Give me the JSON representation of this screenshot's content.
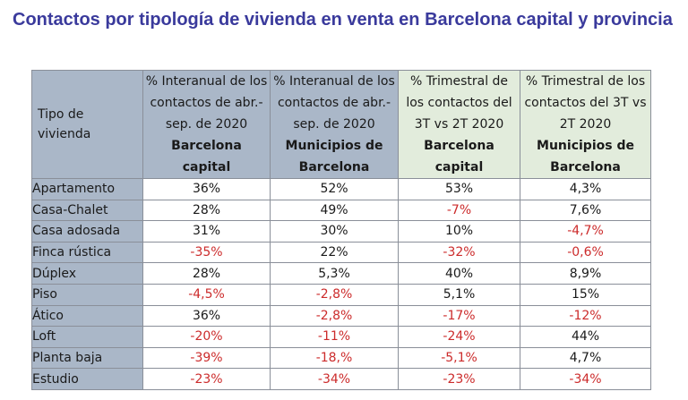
{
  "title": "Contactos por tipología de vivienda en venta en Barcelona capital y provincia",
  "table": {
    "header": {
      "first": "Tipo de vivienda",
      "c1_plain": "% Interanual de los contactos de abr.-sep. de 2020",
      "c1_bold": "Barcelona capital",
      "c2_plain": "% Interanual de los contactos de abr.-sep. de 2020",
      "c2_bold": "Municipios de Barcelona",
      "c3_plain": "% Trimestral de los contactos del 3T vs 2T 2020",
      "c3_bold": "Barcelona capital",
      "c4_plain": "% Trimestral de los contactos del 3T vs 2T 2020",
      "c4_bold": "Municipios de Barcelona"
    },
    "rows": [
      {
        "label": "Apartamento",
        "v": [
          "36%",
          "52%",
          "53%",
          "4,3%"
        ]
      },
      {
        "label": "Casa-Chalet",
        "v": [
          "28%",
          "49%",
          "-7%",
          "7,6%"
        ]
      },
      {
        "label": "Casa adosada",
        "v": [
          "31%",
          "30%",
          "10%",
          "-4,7%"
        ]
      },
      {
        "label": "Finca rústica",
        "v": [
          "-35%",
          "22%",
          "-32%",
          "-0,6%"
        ]
      },
      {
        "label": "Dúplex",
        "v": [
          "28%",
          "5,3%",
          "40%",
          "8,9%"
        ]
      },
      {
        "label": "Piso",
        "v": [
          "-4,5%",
          "-2,8%",
          "5,1%",
          "15%"
        ]
      },
      {
        "label": "Ático",
        "v": [
          "36%",
          "-2,8%",
          "-17%",
          "-12%"
        ]
      },
      {
        "label": "Loft",
        "v": [
          "-20%",
          "-11%",
          "-24%",
          "44%"
        ]
      },
      {
        "label": "Planta baja",
        "v": [
          "-39%",
          "-18,%",
          "-5,1%",
          "4,7%"
        ]
      },
      {
        "label": "Estudio",
        "v": [
          "-23%",
          "-34%",
          "-23%",
          "-34%"
        ]
      }
    ]
  },
  "colors": {
    "title": "#3a3a9c",
    "header_blue": "#aab7c8",
    "header_green": "#e2ecdc",
    "negative": "#cc2b2b"
  }
}
